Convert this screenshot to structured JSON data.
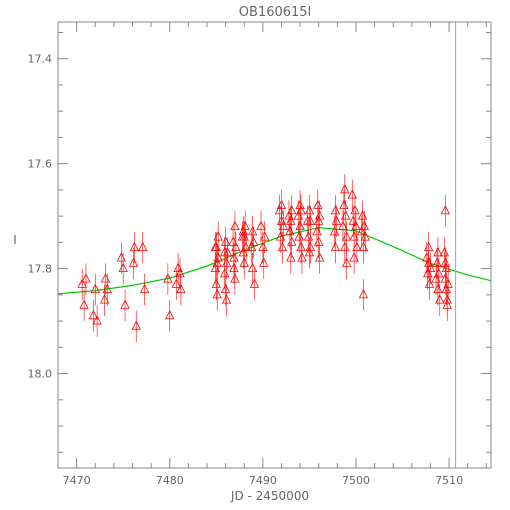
{
  "chart_data": {
    "type": "scatter",
    "title": "OB160615l",
    "xlabel": "JD - 2450000",
    "ylabel": "I",
    "xlim": [
      7468,
      7514.5
    ],
    "ylim": [
      18.18,
      17.33
    ],
    "y_inverted": true,
    "grid": false,
    "x_ticks": [
      7470,
      7480,
      7490,
      7500,
      7510
    ],
    "y_ticks": [
      17.4,
      17.6,
      17.8,
      18.0
    ],
    "x_tick_labels": [
      "7470",
      "7480",
      "7490",
      "7500",
      "7510"
    ],
    "y_tick_labels": [
      "17.4",
      "17.6",
      "17.8",
      "18.0"
    ],
    "vline_x": 7510.7,
    "colors": {
      "points": "#ff0000",
      "model": "#00cc00",
      "vline": "#9999ee",
      "axes": "#888888",
      "text": "#666666"
    },
    "model": {
      "x": [
        7468,
        7472,
        7476,
        7480,
        7484,
        7488,
        7492,
        7496,
        7500,
        7504,
        7508,
        7512,
        7514.5
      ],
      "y": [
        17.848,
        17.842,
        17.832,
        17.818,
        17.795,
        17.765,
        17.738,
        17.722,
        17.728,
        17.758,
        17.79,
        17.812,
        17.823
      ]
    },
    "points": {
      "x": [
        7470.6,
        7470.8,
        7471.0,
        7471.8,
        7472.0,
        7472.2,
        7473.0,
        7473.1,
        7473.3,
        7474.8,
        7475.0,
        7475.2,
        7476.1,
        7476.2,
        7476.4,
        7477.1,
        7477.3,
        7479.8,
        7480.0,
        7480.7,
        7480.9,
        7481.1,
        7481.2,
        7484.9,
        7484.9,
        7485.0,
        7485.0,
        7485.1,
        7485.1,
        7485.2,
        7485.2,
        7485.9,
        7485.9,
        7486.0,
        7486.0,
        7486.1,
        7486.1,
        7486.2,
        7486.8,
        7486.9,
        7486.9,
        7487.0,
        7487.0,
        7487.1,
        7487.8,
        7487.9,
        7487.9,
        7488.0,
        7488.0,
        7488.1,
        7488.2,
        7488.8,
        7488.9,
        7488.9,
        7489.0,
        7489.1,
        7489.8,
        7490.0,
        7490.1,
        7490.2,
        7491.8,
        7491.9,
        7492.0,
        7492.0,
        7492.1,
        7492.2,
        7492.8,
        7492.9,
        7493.0,
        7493.0,
        7493.1,
        7493.1,
        7493.8,
        7493.9,
        7494.0,
        7494.0,
        7494.1,
        7494.1,
        7494.2,
        7494.8,
        7494.9,
        7495.0,
        7495.0,
        7495.1,
        7495.1,
        7495.8,
        7495.9,
        7496.0,
        7496.0,
        7496.1,
        7496.1,
        7497.7,
        7497.8,
        7497.8,
        7497.9,
        7498.6,
        7498.7,
        7498.8,
        7498.8,
        7498.9,
        7499.0,
        7499.0,
        7499.6,
        7499.7,
        7499.8,
        7499.8,
        7499.9,
        7500.0,
        7500.1,
        7500.6,
        7500.7,
        7500.8,
        7500.8,
        7500.9,
        7501.0,
        7507.6,
        7507.7,
        7507.8,
        7507.8,
        7507.9,
        7508.0,
        7508.6,
        7508.7,
        7508.8,
        7508.8,
        7508.9,
        7509.0,
        7509.5,
        7509.6,
        7509.6,
        7509.7,
        7509.7,
        7509.8,
        7509.8,
        7509.9,
        7509.6
      ],
      "y": [
        17.83,
        17.87,
        17.82,
        17.89,
        17.84,
        17.9,
        17.86,
        17.82,
        17.84,
        17.78,
        17.8,
        17.87,
        17.79,
        17.76,
        17.91,
        17.76,
        17.84,
        17.82,
        17.89,
        17.83,
        17.8,
        17.81,
        17.84,
        17.76,
        17.8,
        17.83,
        17.76,
        17.79,
        17.85,
        17.78,
        17.74,
        17.77,
        17.81,
        17.75,
        17.84,
        17.79,
        17.86,
        17.77,
        17.75,
        17.8,
        17.78,
        17.72,
        17.82,
        17.76,
        17.74,
        17.73,
        17.77,
        17.79,
        17.74,
        17.72,
        17.76,
        17.76,
        17.73,
        17.8,
        17.75,
        17.83,
        17.72,
        17.76,
        17.79,
        17.74,
        17.69,
        17.74,
        17.68,
        17.71,
        17.76,
        17.72,
        17.7,
        17.73,
        17.71,
        17.78,
        17.69,
        17.75,
        17.7,
        17.74,
        17.68,
        17.72,
        17.76,
        17.69,
        17.78,
        17.71,
        17.74,
        17.69,
        17.77,
        17.71,
        17.76,
        17.73,
        17.68,
        17.71,
        17.75,
        17.7,
        17.78,
        17.73,
        17.69,
        17.76,
        17.71,
        17.72,
        17.68,
        17.65,
        17.76,
        17.7,
        17.74,
        17.79,
        17.66,
        17.71,
        17.74,
        17.78,
        17.69,
        17.72,
        17.76,
        17.73,
        17.7,
        17.76,
        17.85,
        17.72,
        17.74,
        17.78,
        17.81,
        17.79,
        17.76,
        17.83,
        17.8,
        17.82,
        17.79,
        17.84,
        17.77,
        17.81,
        17.86,
        17.77,
        17.79,
        17.82,
        17.84,
        17.8,
        17.86,
        17.87,
        17.83,
        17.69
      ],
      "yerr": 0.03
    }
  }
}
